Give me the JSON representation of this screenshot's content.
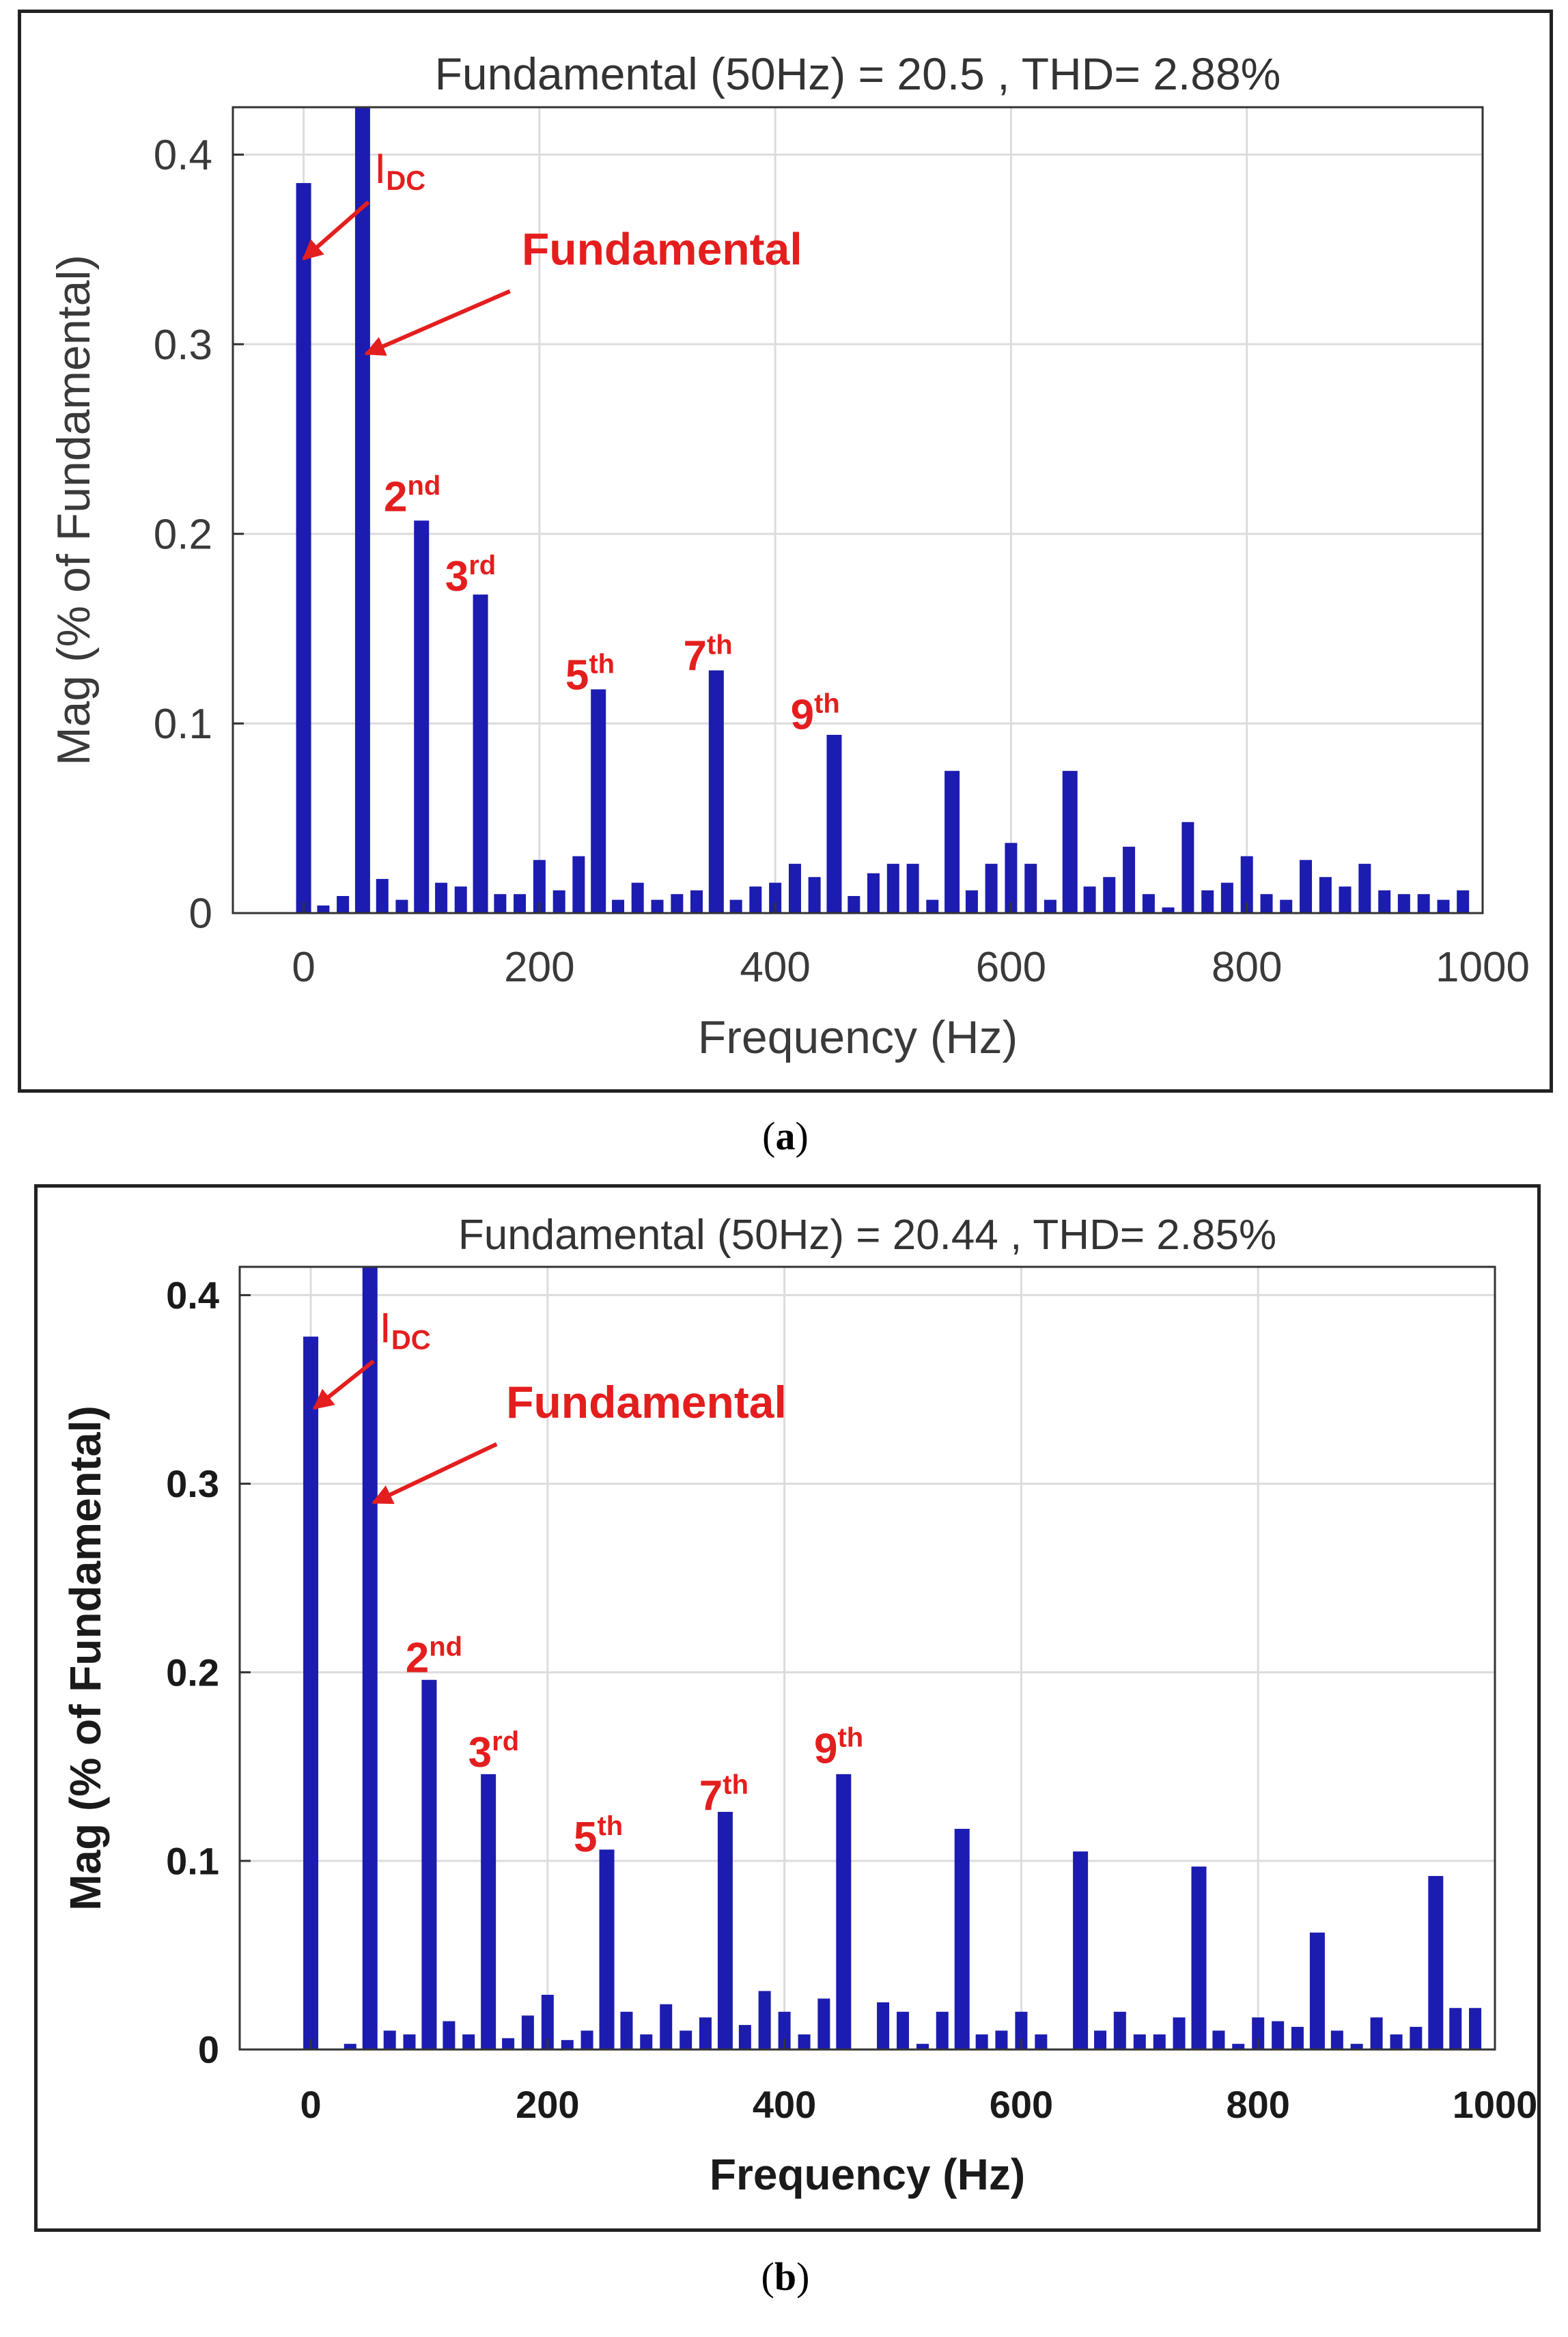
{
  "captions": {
    "a_open": "(",
    "a_letter": "a",
    "a_close": ")",
    "b_open": "(",
    "b_letter": "b",
    "b_close": ")"
  },
  "chart_data": [
    {
      "type": "bar",
      "panel": "a",
      "title": "Fundamental (50Hz) = 20.5 , THD= 2.88%",
      "xlabel": "Frequency (Hz)",
      "ylabel": "Mag (% of Fundamental)",
      "xlim": [
        -60,
        1000
      ],
      "ylim": [
        0,
        0.425
      ],
      "xticks": [
        0,
        200,
        400,
        600,
        800,
        1000
      ],
      "xtick_labels": [
        "0",
        "200",
        "400",
        "600",
        "800",
        "1000"
      ],
      "yticks": [
        0,
        0.1,
        0.2,
        0.3,
        0.4
      ],
      "ytick_labels": [
        "0",
        "0.1",
        "0.2",
        "0.3",
        "0.4"
      ],
      "grid": true,
      "bold_axes": false,
      "bar_color": "#1c1cb0",
      "annotation_color": "#e41e1e",
      "x": [
        0,
        16.7,
        33.3,
        50,
        66.7,
        83.3,
        100,
        116.7,
        133.3,
        150,
        166.7,
        183.3,
        200,
        216.7,
        233.3,
        250,
        266.7,
        283.3,
        300,
        316.7,
        333.3,
        350,
        366.7,
        383.3,
        400,
        416.7,
        433.3,
        450,
        466.7,
        483.3,
        500,
        516.7,
        533.3,
        550,
        566.7,
        583.3,
        600,
        616.7,
        633.3,
        650,
        666.7,
        683.3,
        700,
        716.7,
        733.3,
        750,
        766.7,
        783.3,
        800,
        816.7,
        833.3,
        850,
        866.7,
        883.3,
        900,
        916.7,
        933.3,
        950,
        966.7,
        983.3
      ],
      "values": [
        0.385,
        0.004,
        0.009,
        0.425,
        0.018,
        0.007,
        0.207,
        0.016,
        0.014,
        0.168,
        0.01,
        0.01,
        0.028,
        0.012,
        0.03,
        0.118,
        0.007,
        0.016,
        0.007,
        0.01,
        0.012,
        0.128,
        0.007,
        0.014,
        0.016,
        0.026,
        0.019,
        0.094,
        0.009,
        0.021,
        0.026,
        0.026,
        0.007,
        0.075,
        0.012,
        0.026,
        0.037,
        0.026,
        0.007,
        0.075,
        0.014,
        0.019,
        0.035,
        0.01,
        0.003,
        0.048,
        0.012,
        0.016,
        0.03,
        0.01,
        0.007,
        0.028,
        0.019,
        0.014,
        0.026,
        0.012,
        0.01,
        0.01,
        0.007,
        0.012
      ],
      "annotations": [
        {
          "label": "I",
          "sub": "DC",
          "text_x": 60,
          "text_y": 0.385,
          "arrow_from": [
            55,
            0.375
          ],
          "arrow_to": [
            0,
            0.345
          ]
        },
        {
          "label": "Fundamental",
          "text_x": 185,
          "text_y": 0.342,
          "arrow_from": [
            175,
            0.328
          ],
          "arrow_to": [
            53,
            0.295
          ]
        },
        {
          "label": "2",
          "sup": "nd",
          "text_x": 68,
          "text_y": 0.212
        },
        {
          "label": "3",
          "sup": "rd",
          "text_x": 120,
          "text_y": 0.17
        },
        {
          "label": "5",
          "sup": "th",
          "text_x": 222,
          "text_y": 0.118
        },
        {
          "label": "7",
          "sup": "th",
          "text_x": 322,
          "text_y": 0.128
        },
        {
          "label": "9",
          "sup": "th",
          "text_x": 413,
          "text_y": 0.097
        }
      ]
    },
    {
      "type": "bar",
      "panel": "b",
      "title": "Fundamental (50Hz) = 20.44 , THD= 2.85%",
      "xlabel": "Frequency (Hz)",
      "ylabel": "Mag (% of Fundamental)",
      "xlim": [
        -60,
        1000
      ],
      "ylim": [
        0,
        0.415
      ],
      "xticks": [
        0,
        200,
        400,
        600,
        800,
        1000
      ],
      "xtick_labels": [
        "0",
        "200",
        "400",
        "600",
        "800",
        "1000"
      ],
      "yticks": [
        0,
        0.1,
        0.2,
        0.3,
        0.4
      ],
      "ytick_labels": [
        "0",
        "0.1",
        "0.2",
        "0.3",
        "0.4"
      ],
      "grid": true,
      "bold_axes": true,
      "bar_color": "#1c1cb0",
      "annotation_color": "#e41e1e",
      "x": [
        0,
        16.7,
        33.3,
        50,
        66.7,
        83.3,
        100,
        116.7,
        133.3,
        150,
        166.7,
        183.3,
        200,
        216.7,
        233.3,
        250,
        266.7,
        283.3,
        300,
        316.7,
        333.3,
        350,
        366.7,
        383.3,
        400,
        416.7,
        433.3,
        450,
        466.7,
        483.3,
        500,
        516.7,
        533.3,
        550,
        566.7,
        583.3,
        600,
        616.7,
        633.3,
        650,
        666.7,
        683.3,
        700,
        716.7,
        733.3,
        750,
        766.7,
        783.3,
        800,
        816.7,
        833.3,
        850,
        866.7,
        883.3,
        900,
        916.7,
        933.3,
        950,
        966.7,
        983.3
      ],
      "values": [
        0.378,
        0.0,
        0.003,
        0.415,
        0.01,
        0.008,
        0.196,
        0.015,
        0.008,
        0.146,
        0.006,
        0.018,
        0.029,
        0.005,
        0.01,
        0.106,
        0.02,
        0.008,
        0.024,
        0.01,
        0.017,
        0.126,
        0.013,
        0.031,
        0.02,
        0.008,
        0.027,
        0.146,
        0.0,
        0.025,
        0.02,
        0.003,
        0.02,
        0.117,
        0.008,
        0.01,
        0.02,
        0.008,
        0.0,
        0.105,
        0.01,
        0.02,
        0.008,
        0.008,
        0.017,
        0.097,
        0.01,
        0.003,
        0.017,
        0.015,
        0.012,
        0.062,
        0.01,
        0.003,
        0.017,
        0.008,
        0.012,
        0.092,
        0.022,
        0.022
      ],
      "annotations": [
        {
          "label": "I",
          "sub": "DC",
          "text_x": 58,
          "text_y": 0.375,
          "arrow_from": [
            53,
            0.365
          ],
          "arrow_to": [
            3,
            0.34
          ]
        },
        {
          "label": "Fundamental",
          "text_x": 165,
          "text_y": 0.335,
          "arrow_from": [
            157,
            0.321
          ],
          "arrow_to": [
            53,
            0.29
          ]
        },
        {
          "label": "2",
          "sup": "nd",
          "text_x": 80,
          "text_y": 0.2
        },
        {
          "label": "3",
          "sup": "rd",
          "text_x": 133,
          "text_y": 0.15
        },
        {
          "label": "5",
          "sup": "th",
          "text_x": 222,
          "text_y": 0.105
        },
        {
          "label": "7",
          "sup": "th",
          "text_x": 328,
          "text_y": 0.127
        },
        {
          "label": "9",
          "sup": "th",
          "text_x": 425,
          "text_y": 0.152
        }
      ]
    }
  ]
}
